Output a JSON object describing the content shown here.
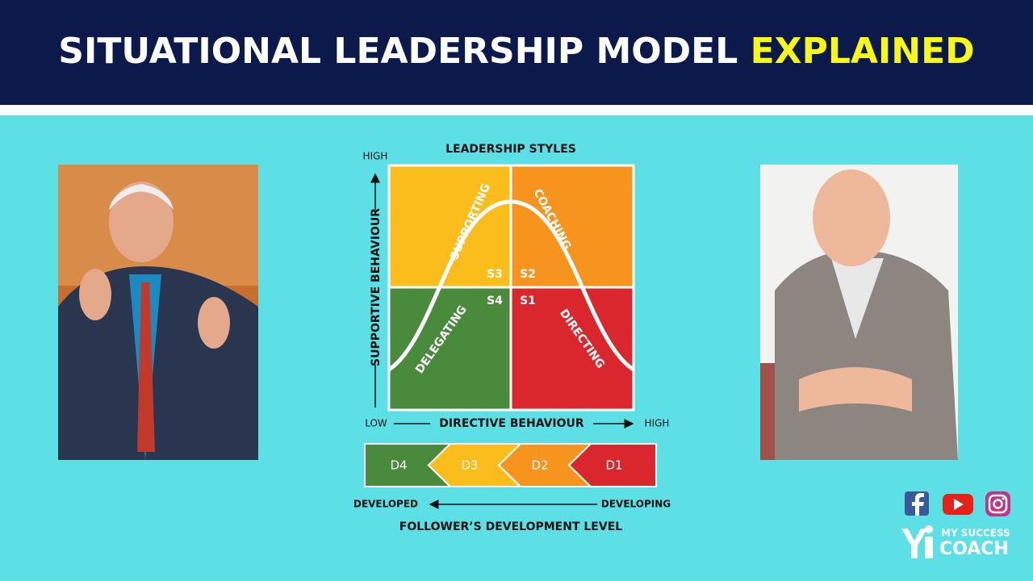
{
  "header": {
    "title": "SITUATIONAL LEADERSHIP MODEL",
    "highlight": "EXPLAINED"
  },
  "diagram": {
    "heading": "LEADERSHIP STYLES",
    "y_axis": {
      "label": "SUPPORTIVE BEHAVIOUR",
      "high": "HIGH"
    },
    "x_axis": {
      "label": "DIRECTIVE BEHAVIOUR",
      "low": "LOW",
      "high": "HIGH"
    },
    "quadrants": [
      {
        "style": "SUPPORTING",
        "code": "S3"
      },
      {
        "style": "COACHING",
        "code": "S2"
      },
      {
        "style": "DELEGATING",
        "code": "S4"
      },
      {
        "style": "DIRECTING",
        "code": "S1"
      }
    ],
    "development": {
      "levels": [
        "D4",
        "D3",
        "D2",
        "D1"
      ],
      "left": "DEVELOPED",
      "right": "DEVELOPING",
      "label": "FOLLOWER’S DEVELOPMENT LEVEL"
    }
  },
  "brand": {
    "line1": "MY SUCCESS",
    "line2": "COACH"
  }
}
